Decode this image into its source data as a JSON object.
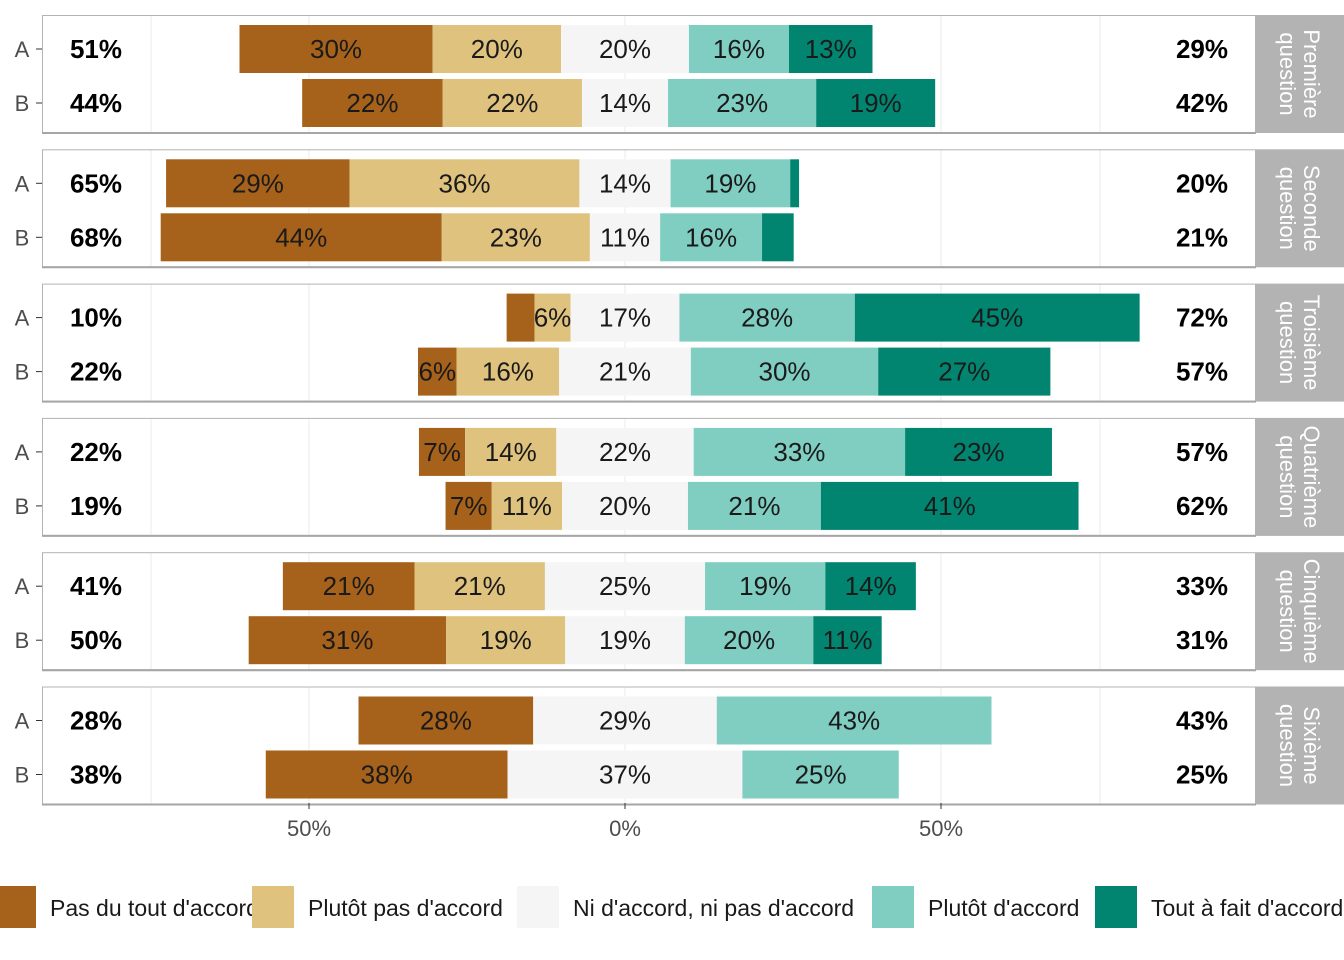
{
  "chart_data": {
    "type": "bar",
    "orientation": "horizontal-diverging",
    "xlabel": "",
    "ylabel": "",
    "x_ticks": [
      "50%",
      "0%",
      "50%"
    ],
    "legend_position": "bottom",
    "levels": [
      {
        "name": "Pas du tout d'accord",
        "color": "#a6611a"
      },
      {
        "name": "Plutôt pas d'accord",
        "color": "#dfc27d"
      },
      {
        "name": "Ni d'accord, ni pas d'accord",
        "color": "#f5f5f5"
      },
      {
        "name": "Plutôt d'accord",
        "color": "#80cdc1"
      },
      {
        "name": "Tout à fait d'accord",
        "color": "#018571"
      }
    ],
    "panels": [
      {
        "title": "Première question",
        "rows": [
          {
            "group": "A",
            "values": [
              30.5,
              20.3,
              20.2,
              15.8,
              13.2
            ],
            "labels": [
              "30%",
              "20%",
              "20%",
              "16%",
              "13%"
            ],
            "left_total": "51%",
            "right_total": "29%"
          },
          {
            "group": "B",
            "values": [
              22.2,
              22.0,
              13.6,
              23.4,
              18.8
            ],
            "labels": [
              "22%",
              "22%",
              "14%",
              "23%",
              "19%"
            ],
            "left_total": "44%",
            "right_total": "42%"
          }
        ]
      },
      {
        "title": "Seconde question",
        "rows": [
          {
            "group": "A",
            "values": [
              29.0,
              36.3,
              14.4,
              18.9,
              1.4
            ],
            "labels": [
              "29%",
              "36%",
              "14%",
              "19%",
              ""
            ],
            "left_total": "65%",
            "right_total": "20%"
          },
          {
            "group": "B",
            "values": [
              44.4,
              23.4,
              11.1,
              16.1,
              5.0
            ],
            "labels": [
              "44%",
              "23%",
              "11%",
              "16%",
              ""
            ],
            "left_total": "68%",
            "right_total": "21%"
          }
        ]
      },
      {
        "title": "Troisième question",
        "rows": [
          {
            "group": "A",
            "values": [
              4.4,
              5.7,
              17.2,
              27.7,
              45.0
            ],
            "labels": [
              "",
              "6%",
              "17%",
              "28%",
              "45%"
            ],
            "left_total": "10%",
            "right_total": "72%"
          },
          {
            "group": "B",
            "values": [
              6.1,
              16.2,
              20.8,
              29.6,
              27.2
            ],
            "labels": [
              "6%",
              "16%",
              "21%",
              "30%",
              "27%"
            ],
            "left_total": "22%",
            "right_total": "57%"
          }
        ]
      },
      {
        "title": "Quatrième question",
        "rows": [
          {
            "group": "A",
            "values": [
              7.3,
              14.4,
              21.7,
              33.4,
              23.2
            ],
            "labels": [
              "7%",
              "14%",
              "22%",
              "33%",
              "23%"
            ],
            "left_total": "22%",
            "right_total": "57%"
          },
          {
            "group": "B",
            "values": [
              7.3,
              11.1,
              19.9,
              21.0,
              40.7
            ],
            "labels": [
              "7%",
              "11%",
              "20%",
              "21%",
              "41%"
            ],
            "left_total": "19%",
            "right_total": "62%"
          }
        ]
      },
      {
        "title": "Cinquième question",
        "rows": [
          {
            "group": "A",
            "values": [
              20.8,
              20.6,
              25.3,
              19.0,
              14.3
            ],
            "labels": [
              "21%",
              "21%",
              "25%",
              "19%",
              "14%"
            ],
            "left_total": "41%",
            "right_total": "33%"
          },
          {
            "group": "B",
            "values": [
              31.2,
              18.8,
              18.9,
              20.3,
              10.8
            ],
            "labels": [
              "31%",
              "19%",
              "19%",
              "20%",
              "11%"
            ],
            "left_total": "50%",
            "right_total": "31%"
          }
        ]
      },
      {
        "title": "Sixième question",
        "rows": [
          {
            "group": "A",
            "values": [
              27.6,
              0,
              29.0,
              43.4,
              0
            ],
            "labels": [
              "28%",
              "",
              "29%",
              "43%",
              ""
            ],
            "left_total": "28%",
            "right_total": "43%"
          },
          {
            "group": "B",
            "values": [
              38.2,
              0,
              37.1,
              24.7,
              0
            ],
            "labels": [
              "38%",
              "",
              "37%",
              "25%",
              ""
            ],
            "left_total": "38%",
            "right_total": "25%"
          }
        ]
      }
    ]
  }
}
